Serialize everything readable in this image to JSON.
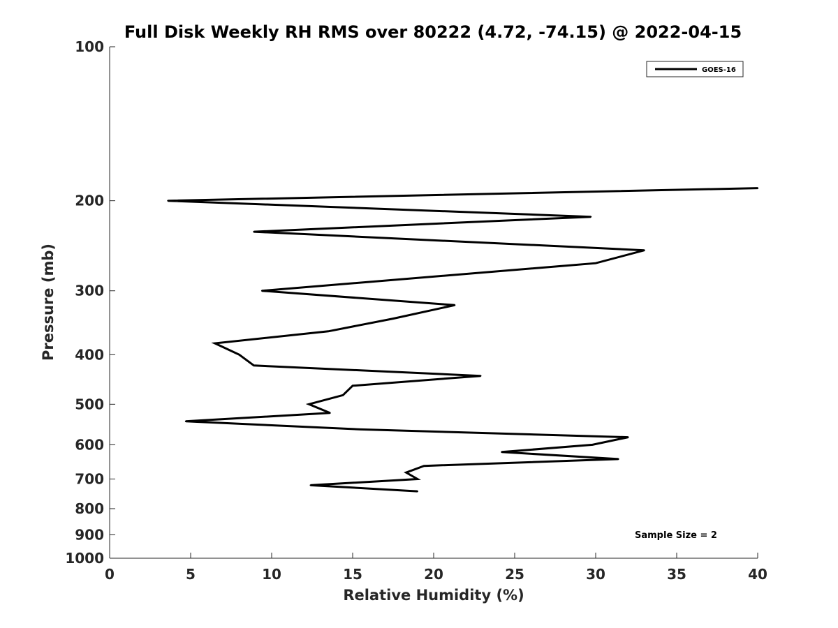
{
  "chart_data": {
    "type": "line",
    "title": "Full Disk Weekly RH RMS over 80222 (4.72, -74.15) @ 2022-04-15",
    "xlabel": "Relative Humidity (%)",
    "ylabel": "Pressure (mb)",
    "xlim": [
      0,
      40
    ],
    "ylim": [
      100,
      1000
    ],
    "y_scale": "log",
    "y_reversed": true,
    "x_ticks": [
      0,
      5,
      10,
      15,
      20,
      25,
      30,
      35,
      40
    ],
    "y_ticks": [
      100,
      200,
      300,
      400,
      500,
      600,
      700,
      800,
      900,
      1000
    ],
    "grid": false,
    "legend_position": "top-right",
    "series": [
      {
        "name": "GOES-16",
        "color": "#000000",
        "points": [
          {
            "p": 189,
            "rh": 40.0
          },
          {
            "p": 200,
            "rh": 3.6
          },
          {
            "p": 215,
            "rh": 29.7
          },
          {
            "p": 230,
            "rh": 8.9
          },
          {
            "p": 250,
            "rh": 33.0
          },
          {
            "p": 265,
            "rh": 30.0
          },
          {
            "p": 300,
            "rh": 9.4
          },
          {
            "p": 320,
            "rh": 21.3
          },
          {
            "p": 340,
            "rh": 17.5
          },
          {
            "p": 360,
            "rh": 13.5
          },
          {
            "p": 380,
            "rh": 6.5
          },
          {
            "p": 400,
            "rh": 8.0
          },
          {
            "p": 420,
            "rh": 8.9
          },
          {
            "p": 440,
            "rh": 22.9
          },
          {
            "p": 460,
            "rh": 15.0
          },
          {
            "p": 480,
            "rh": 14.4
          },
          {
            "p": 500,
            "rh": 12.3
          },
          {
            "p": 520,
            "rh": 13.6
          },
          {
            "p": 540,
            "rh": 4.7
          },
          {
            "p": 560,
            "rh": 15.5
          },
          {
            "p": 580,
            "rh": 32.0
          },
          {
            "p": 600,
            "rh": 29.8
          },
          {
            "p": 620,
            "rh": 24.2
          },
          {
            "p": 640,
            "rh": 31.4
          },
          {
            "p": 660,
            "rh": 19.4
          },
          {
            "p": 680,
            "rh": 18.3
          },
          {
            "p": 700,
            "rh": 19.0
          },
          {
            "p": 720,
            "rh": 12.4
          },
          {
            "p": 740,
            "rh": 19.0
          }
        ]
      }
    ],
    "annotations": [
      "Sample Size = 2"
    ]
  }
}
